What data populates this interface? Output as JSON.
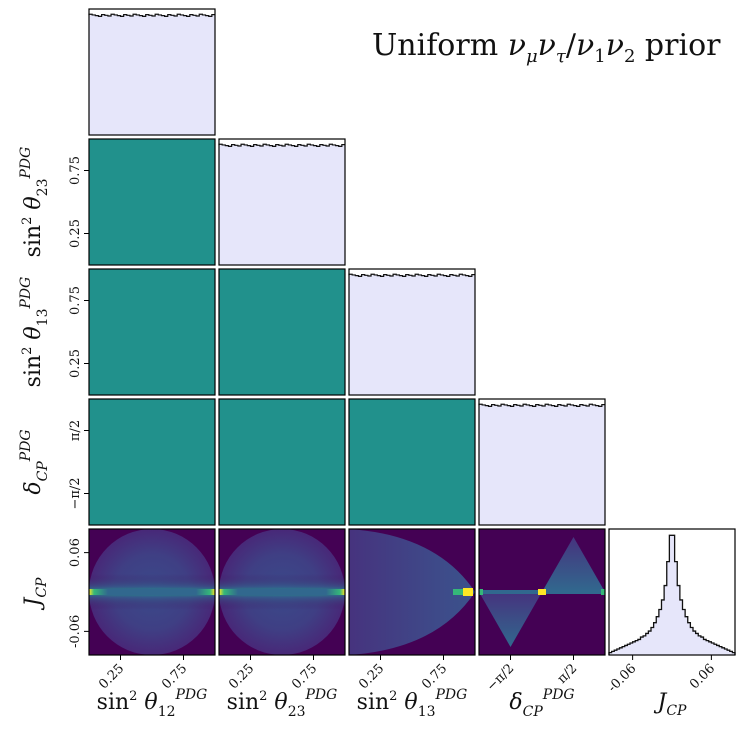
{
  "title": "Uniform νμντ/ν1ν2 prior",
  "chart_data": {
    "type": "corner",
    "title": "Uniform νμντ/ν1ν2 prior",
    "parameters": [
      "sin² θ12^PDG",
      "sin² θ23^PDG",
      "sin² θ13^PDG",
      "δCP^PDG",
      "JCP"
    ],
    "axis_labels": {
      "x": [
        "sin² θ12PDG",
        "sin² θ23PDG",
        "sin² θ13PDG",
        "δCPPDG",
        "JCP"
      ],
      "y": [
        "sin² θ23PDG",
        "sin² θ13PDG",
        "δCPPDG",
        "JCP"
      ]
    },
    "ticks": {
      "sin2_12": {
        "range": [
          0,
          1
        ],
        "values": [
          0.25,
          0.75
        ],
        "labels": [
          "0.25",
          "0.75"
        ]
      },
      "sin2_23": {
        "range": [
          0,
          1
        ],
        "values": [
          0.25,
          0.75
        ],
        "labels": [
          "0.25",
          "0.75"
        ]
      },
      "sin2_13": {
        "range": [
          0,
          1
        ],
        "values": [
          0.25,
          0.75
        ],
        "labels": [
          "0.25",
          "0.75"
        ]
      },
      "dcp": {
        "range": [
          -3.1416,
          3.1416
        ],
        "values": [
          -1.5708,
          1.5708
        ],
        "labels": [
          "−π/2",
          "π/2"
        ]
      },
      "jcp": {
        "range": [
          -0.096,
          0.096
        ],
        "values": [
          -0.06,
          0.06
        ],
        "labels": [
          "-0.06",
          "0.06"
        ]
      }
    },
    "diagonal_histograms": {
      "sin2_12": {
        "shape": "uniform",
        "relative_height": 0.95
      },
      "sin2_23": {
        "shape": "uniform",
        "relative_height": 0.95
      },
      "sin2_13": {
        "shape": "uniform",
        "relative_height": 0.95
      },
      "dcp": {
        "shape": "uniform",
        "relative_height": 0.95
      },
      "jcp": {
        "bin_edges": [
          -0.096,
          -0.092,
          -0.088,
          -0.084,
          -0.08,
          -0.076,
          -0.072,
          -0.068,
          -0.064,
          -0.06,
          -0.056,
          -0.052,
          -0.048,
          -0.044,
          -0.04,
          -0.036,
          -0.032,
          -0.028,
          -0.024,
          -0.02,
          -0.016,
          -0.012,
          -0.008,
          -0.004,
          0.0,
          0.004,
          0.008,
          0.012,
          0.016,
          0.02,
          0.024,
          0.028,
          0.032,
          0.036,
          0.04,
          0.044,
          0.048,
          0.052,
          0.056,
          0.06,
          0.064,
          0.068,
          0.072,
          0.076,
          0.08,
          0.084,
          0.088,
          0.092,
          0.096
        ],
        "relative_counts": [
          0.02,
          0.03,
          0.04,
          0.05,
          0.06,
          0.07,
          0.08,
          0.09,
          0.1,
          0.11,
          0.12,
          0.13,
          0.15,
          0.16,
          0.18,
          0.2,
          0.23,
          0.27,
          0.32,
          0.38,
          0.46,
          0.58,
          0.78,
          1.0,
          1.0,
          0.78,
          0.58,
          0.46,
          0.38,
          0.32,
          0.27,
          0.23,
          0.2,
          0.18,
          0.16,
          0.15,
          0.13,
          0.12,
          0.11,
          0.1,
          0.09,
          0.08,
          0.07,
          0.06,
          0.05,
          0.04,
          0.03,
          0.02
        ]
      }
    },
    "off_diagonal": "2D density (viridis); uniform in all angle pairs, structured in JCP row",
    "colors": {
      "histogram_fill": "#e6e6fa",
      "histogram_line": "#111111",
      "density_uniform": "#21918c",
      "viridis_low": "#440154",
      "viridis_high": "#fde725"
    },
    "grid": false,
    "legend": "none"
  }
}
